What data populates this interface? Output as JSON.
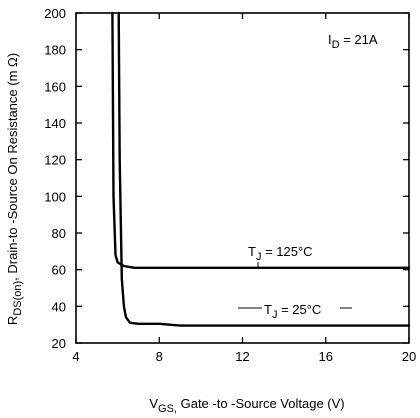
{
  "chart_data": {
    "type": "line",
    "xlabel": {
      "main": "V",
      "sub": "GS,",
      "rest": " Gate -to -Source Voltage  (V)"
    },
    "ylabel": {
      "main": "R",
      "sub": "DS(on)",
      "rest": ",  Drain-to -Source On Resistance (m Ω)"
    },
    "xlim": [
      4,
      20
    ],
    "ylim": [
      20,
      200
    ],
    "xticks": [
      4,
      8,
      12,
      16,
      20
    ],
    "yticks": [
      20,
      40,
      60,
      80,
      100,
      120,
      140,
      160,
      180,
      200
    ],
    "grid": false,
    "annotation": {
      "main": "I",
      "sub": "D",
      "rest": " = 21A"
    },
    "series": [
      {
        "name": {
          "main": "T",
          "sub": "J",
          "rest": " = 125°C"
        },
        "x": [
          5.75,
          5.8,
          5.9,
          6.0,
          6.3,
          6.8,
          8,
          10,
          12,
          14,
          16,
          18,
          20
        ],
        "y": [
          200,
          100,
          68,
          64,
          62,
          61,
          61,
          61,
          61,
          61,
          61,
          61,
          61
        ]
      },
      {
        "name": {
          "main": "T",
          "sub": "J",
          "rest": " = 25°C"
        },
        "x": [
          6.05,
          6.1,
          6.2,
          6.3,
          6.4,
          6.6,
          7.0,
          7.5,
          8.0,
          9.0,
          10,
          12,
          14,
          16,
          18,
          20
        ],
        "y": [
          200,
          120,
          55,
          40,
          34,
          31,
          30.5,
          30.5,
          30.5,
          29.5,
          29.5,
          29.5,
          29.5,
          29.5,
          29.5,
          29.5
        ]
      }
    ]
  }
}
